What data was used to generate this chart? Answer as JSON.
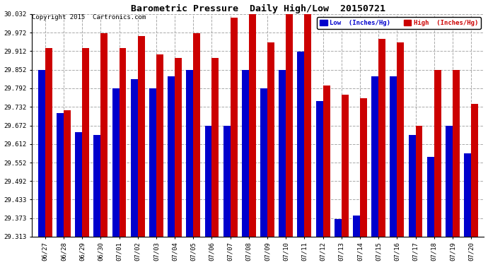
{
  "title": "Barometric Pressure  Daily High/Low  20150721",
  "copyright": "Copyright 2015  Cartronics.com",
  "legend_low": "Low  (Inches/Hg)",
  "legend_high": "High  (Inches/Hg)",
  "dates": [
    "06/27",
    "06/28",
    "06/29",
    "06/30",
    "07/01",
    "07/02",
    "07/03",
    "07/04",
    "07/05",
    "07/06",
    "07/07",
    "07/08",
    "07/09",
    "07/10",
    "07/11",
    "07/12",
    "07/13",
    "07/14",
    "07/15",
    "07/16",
    "07/17",
    "07/18",
    "07/19",
    "07/20"
  ],
  "low": [
    29.851,
    29.711,
    29.651,
    29.641,
    29.791,
    29.821,
    29.791,
    29.831,
    29.851,
    29.671,
    29.671,
    29.851,
    29.791,
    29.851,
    29.911,
    29.751,
    29.371,
    29.381,
    29.831,
    29.831,
    29.641,
    29.571,
    29.671,
    29.581
  ],
  "high": [
    29.921,
    29.721,
    29.921,
    29.971,
    29.921,
    29.961,
    29.901,
    29.891,
    29.971,
    29.891,
    30.021,
    30.041,
    29.941,
    30.031,
    30.031,
    29.801,
    29.771,
    29.761,
    29.951,
    29.941,
    29.671,
    29.851,
    29.851,
    29.741
  ],
  "ylim_min": 29.313,
  "ylim_max": 30.032,
  "yticks": [
    29.313,
    29.373,
    29.433,
    29.492,
    29.552,
    29.612,
    29.672,
    29.732,
    29.792,
    29.852,
    29.912,
    29.972,
    30.032
  ],
  "ytick_labels": [
    "29.313",
    "29.373",
    "29.433",
    "29.492",
    "29.552",
    "29.612",
    "29.672",
    "29.732",
    "29.792",
    "29.852",
    "29.912",
    "29.972",
    "30.032"
  ],
  "bar_width": 0.38,
  "low_color": "#0000cc",
  "high_color": "#cc0000",
  "bg_color": "#ffffff",
  "grid_color": "#aaaaaa",
  "title_fontsize": 9.5,
  "tick_fontsize": 6.5,
  "legend_fontsize": 6.5,
  "copyright_fontsize": 6.5
}
